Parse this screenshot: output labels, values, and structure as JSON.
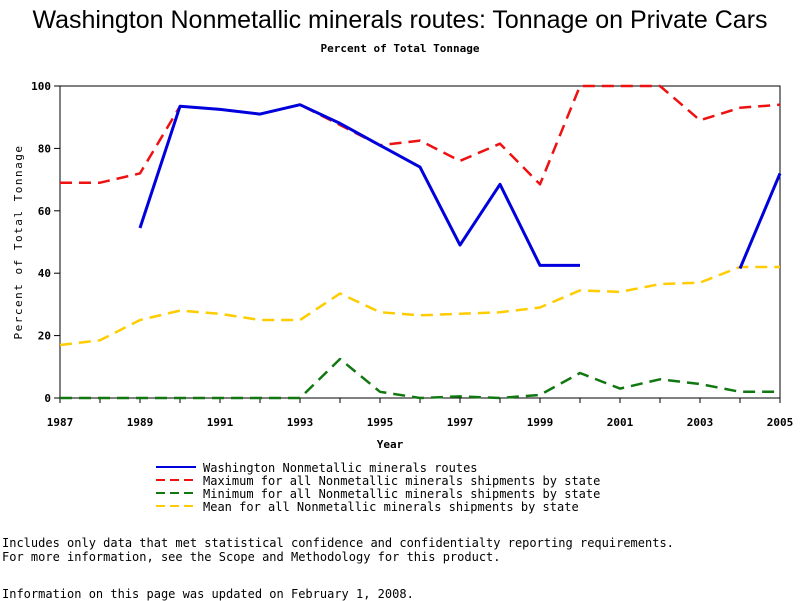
{
  "chart_data": {
    "type": "line",
    "title": "Washington Nonmetallic minerals routes: Tonnage on Private Cars",
    "subtitle": "Percent of Total Tonnage",
    "xlabel": "Year",
    "ylabel": "Percent of Total Tonnage",
    "xlim": [
      1987,
      2005
    ],
    "ylim": [
      0,
      100
    ],
    "x_ticks": [
      "1987",
      "1989",
      "1991",
      "1993",
      "1995",
      "1997",
      "1999",
      "2001",
      "2003",
      "2005"
    ],
    "y_ticks": [
      "0",
      "20",
      "40",
      "60",
      "80",
      "100"
    ],
    "x": [
      1987,
      1988,
      1989,
      1990,
      1991,
      1992,
      1993,
      1994,
      1995,
      1996,
      1997,
      1998,
      1999,
      2000,
      2001,
      2002,
      2003,
      2004,
      2005
    ],
    "series": [
      {
        "name": "Washington Nonmetallic minerals routes",
        "color": "#0000dd",
        "dash": "solid",
        "values": [
          null,
          null,
          54.5,
          93.5,
          92.5,
          91.0,
          94.0,
          88.0,
          81.0,
          74.0,
          49.0,
          68.5,
          42.5,
          42.5,
          null,
          null,
          null,
          41.5,
          72.0
        ]
      },
      {
        "name": "Maximum for all Nonmetallic minerals shipments by state",
        "color": "#ee1111",
        "dash": "dashed",
        "values": [
          69.0,
          69.0,
          72.0,
          93.5,
          92.5,
          91.0,
          94.0,
          87.5,
          81.0,
          82.5,
          76.0,
          81.5,
          68.5,
          100.0,
          100.0,
          100.0,
          89.0,
          93.0,
          94.0
        ]
      },
      {
        "name": "Minimum for all Nonmetallic minerals shipments by state",
        "color": "#117711",
        "dash": "dashed",
        "values": [
          0.0,
          0.0,
          0.0,
          0.0,
          0.0,
          0.0,
          0.0,
          12.5,
          2.0,
          0.0,
          0.5,
          0.0,
          1.0,
          8.0,
          3.0,
          6.0,
          4.5,
          2.0,
          2.0
        ]
      },
      {
        "name": "Mean for all Nonmetallic minerals shipments by state",
        "color": "#ffcc00",
        "dash": "dashed",
        "values": [
          17.0,
          18.5,
          25.0,
          28.0,
          27.0,
          25.0,
          25.0,
          33.5,
          27.5,
          26.5,
          27.0,
          27.5,
          29.0,
          34.5,
          34.0,
          36.5,
          37.0,
          42.0,
          42.0
        ]
      }
    ]
  },
  "footer": {
    "note_line1": "Includes only data that met statistical confidence and confidentialty reporting requirements.",
    "note_line2": "For more information, see the Scope and Methodology for this product.",
    "updated": "Information on this page was updated on February 1, 2008."
  }
}
